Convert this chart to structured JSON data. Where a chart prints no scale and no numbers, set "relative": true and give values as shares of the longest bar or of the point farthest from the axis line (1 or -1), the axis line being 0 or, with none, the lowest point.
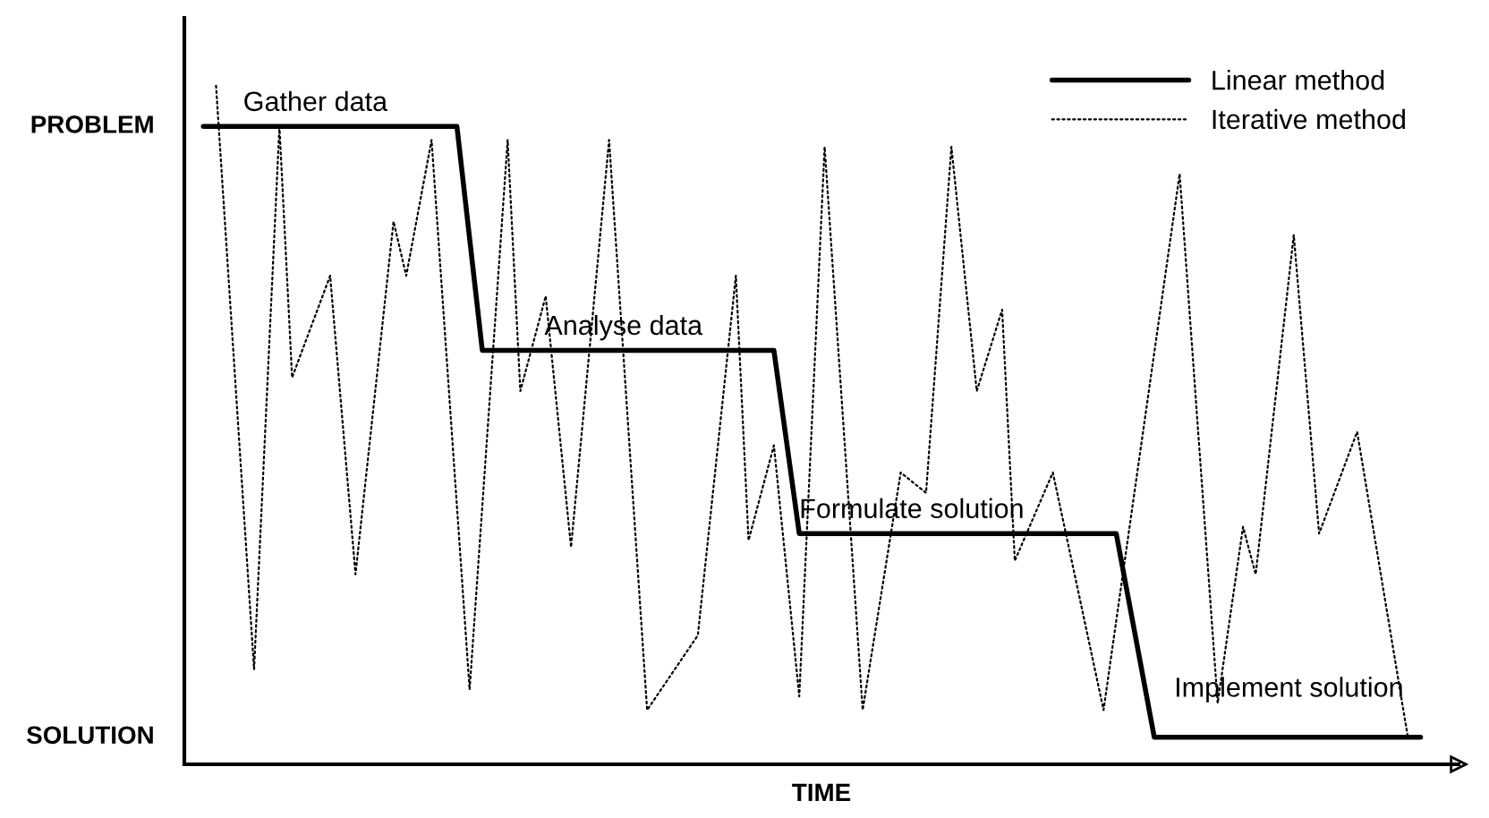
{
  "chart_data": {
    "type": "line",
    "xlabel": "TIME",
    "relative": true,
    "categories": [
      null,
      null,
      null,
      null,
      null,
      null,
      null,
      null,
      null,
      null,
      null,
      null,
      null,
      null,
      null,
      null,
      null,
      null,
      null,
      null,
      null,
      null,
      null,
      null,
      null,
      null,
      null,
      null,
      null,
      null,
      null,
      null,
      null,
      null,
      null,
      null,
      null,
      null,
      null,
      null,
      null,
      null,
      null,
      null,
      null,
      null,
      null,
      null,
      null,
      null,
      null,
      null,
      null,
      null,
      null,
      null,
      null,
      null,
      null,
      null,
      null,
      null,
      null,
      null,
      null,
      null,
      null,
      null,
      null,
      null,
      null,
      null,
      null,
      null,
      null,
      null,
      null,
      null,
      null,
      null,
      null,
      null,
      null,
      null,
      null,
      null,
      null,
      null,
      null,
      null,
      null,
      null,
      null,
      null,
      null,
      null,
      null,
      null
    ],
    "grid": false,
    "legend": "top right",
    "marker": "none",
    "series": [
      {
        "name": "Linear method",
        "color": "#000000",
        "line_style": "solid",
        "values": [
          null,
          0.94,
          null,
          null,
          null,
          null,
          null,
          null,
          null,
          null,
          null,
          null,
          null,
          null,
          null,
          null,
          null,
          null,
          null,
          null,
          null,
          0.94,
          null,
          0.61,
          null,
          null,
          null,
          null,
          null,
          null,
          null,
          null,
          null,
          null,
          null,
          null,
          null,
          null,
          null,
          null,
          null,
          null,
          null,
          null,
          null,
          null,
          0.61,
          null,
          0.34,
          null,
          null,
          null,
          null,
          null,
          null,
          null,
          null,
          null,
          null,
          null,
          null,
          null,
          null,
          null,
          null,
          null,
          null,
          null,
          null,
          null,
          null,
          null,
          null,
          0.34,
          null,
          null,
          0.04,
          null,
          null,
          null,
          null,
          null,
          null,
          null,
          null,
          null,
          null,
          null,
          null,
          null,
          null,
          null,
          null,
          null,
          null,
          null,
          null,
          0.04
        ]
      },
      {
        "name": "Iterative method",
        "color": "#000000",
        "line_style": "dotted",
        "values": [
          null,
          null,
          1.0,
          null,
          null,
          0.14,
          null,
          0.94,
          0.57,
          null,
          null,
          0.72,
          null,
          0.28,
          null,
          null,
          0.8,
          0.72,
          null,
          0.92,
          null,
          null,
          0.11,
          null,
          null,
          0.92,
          0.55,
          null,
          0.69,
          null,
          0.32,
          null,
          null,
          0.92,
          null,
          null,
          0.08,
          null,
          null,
          null,
          0.19,
          null,
          null,
          0.72,
          0.33,
          null,
          0.47,
          null,
          0.1,
          null,
          0.91,
          null,
          null,
          0.08,
          null,
          null,
          0.43,
          null,
          0.4,
          null,
          0.91,
          null,
          0.55,
          null,
          0.67,
          0.3,
          null,
          null,
          0.43,
          null,
          null,
          null,
          0.08,
          null,
          null,
          null,
          null,
          null,
          0.87,
          null,
          null,
          0.09,
          null,
          0.35,
          0.28,
          null,
          null,
          0.78,
          null,
          0.34,
          null,
          null,
          0.49,
          null,
          null,
          null,
          0.04,
          null
        ]
      }
    ],
    "annotations": [
      "PROBLEM",
      "SOLUTION",
      "Gather data",
      "Analyse data",
      "Formulate solution",
      "Implement solution"
    ]
  }
}
